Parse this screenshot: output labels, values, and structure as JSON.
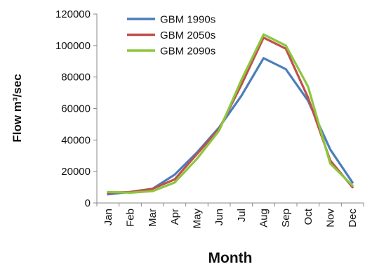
{
  "chart_data": {
    "type": "line",
    "title": "",
    "xlabel": "Month",
    "ylabel": "Flow m³/sec",
    "categories": [
      "Jan",
      "Feb",
      "Mar",
      "Apr",
      "May",
      "Jun",
      "Jul",
      "Aug",
      "Sep",
      "Oct",
      "Nov",
      "Dec"
    ],
    "ylim": [
      0,
      120000
    ],
    "yticks": [
      0,
      20000,
      40000,
      60000,
      80000,
      100000,
      120000
    ],
    "ytick_labels": [
      "0",
      "20000",
      "40000",
      "60000",
      "80000",
      "100000",
      "120000"
    ],
    "grid": false,
    "legend_position": "top-left",
    "series": [
      {
        "name": "GBM 1990s",
        "color": "#4a7ebb",
        "values": [
          5500,
          7000,
          9000,
          18000,
          32000,
          48000,
          68000,
          92000,
          85000,
          65000,
          34000,
          13000
        ]
      },
      {
        "name": "GBM 2050s",
        "color": "#c0504d",
        "values": [
          6500,
          7000,
          9000,
          15000,
          31000,
          47000,
          75000,
          105000,
          98000,
          67000,
          27000,
          10000
        ]
      },
      {
        "name": "GBM 2090s",
        "color": "#8dc63f",
        "values": [
          7000,
          6500,
          7500,
          13000,
          28000,
          46000,
          78000,
          107000,
          100000,
          74000,
          25000,
          11000
        ]
      }
    ]
  }
}
